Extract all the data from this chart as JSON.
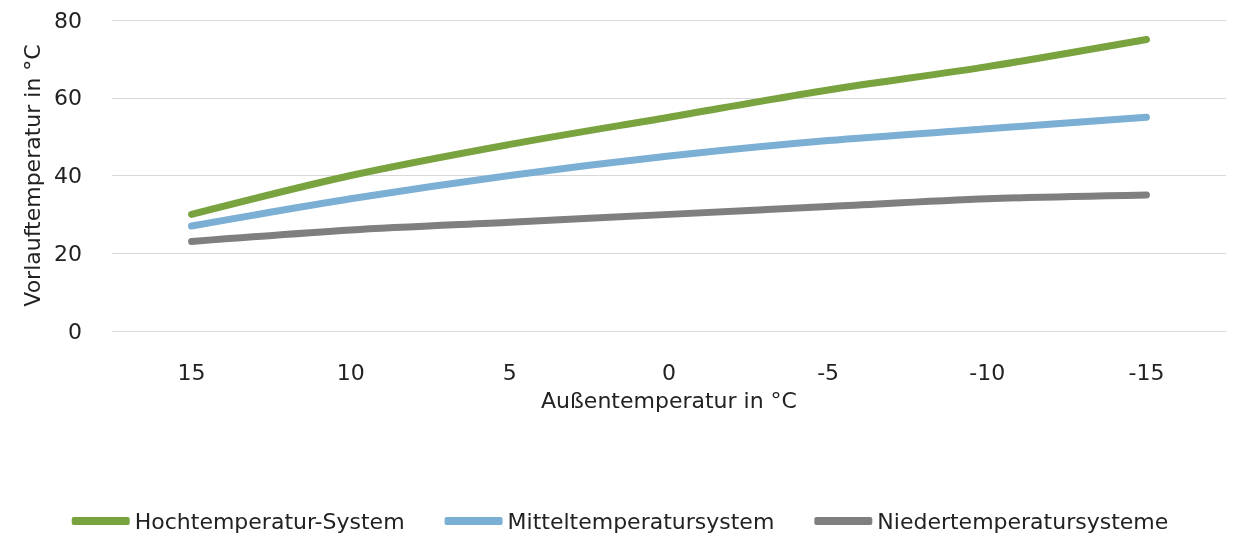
{
  "chart_data": {
    "type": "line",
    "xlabel": "Außentemperatur in °C",
    "ylabel": "Vorlauftemperatur in °C",
    "categories": [
      "15",
      "10",
      "5",
      "0",
      "-5",
      "-10",
      "-15"
    ],
    "series": [
      {
        "name": "Hochtemperatur-System",
        "color": "#78a33f",
        "values": [
          30,
          40,
          48,
          55,
          62,
          68,
          75
        ]
      },
      {
        "name": "Mitteltemperatursystem",
        "color": "#7bafd4",
        "values": [
          27,
          34,
          40,
          45,
          49,
          52,
          55
        ]
      },
      {
        "name": "Niedertemperatursysteme",
        "color": "#7f7f7f",
        "values": [
          23,
          26,
          28,
          30,
          32,
          34,
          35
        ]
      }
    ],
    "ylim": [
      0,
      80
    ],
    "yticks": [
      0,
      20,
      40,
      60,
      80
    ],
    "grid": "y",
    "legend": "bottom",
    "marker": "none",
    "line_style": "solid"
  }
}
